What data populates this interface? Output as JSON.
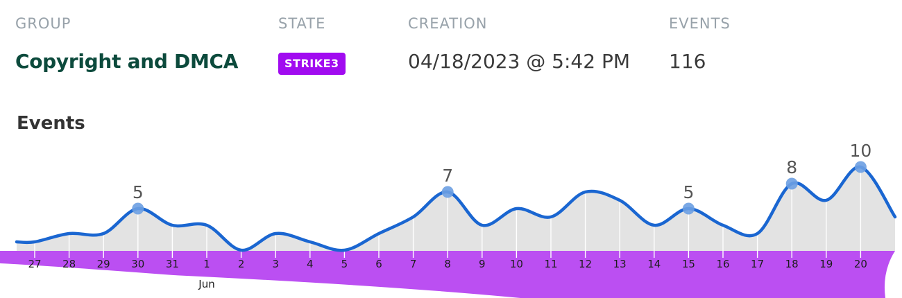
{
  "header": {
    "group_label": "GROUP",
    "state_label": "STATE",
    "creation_label": "CREATION",
    "events_label": "EVENTS",
    "group_value": "Copyright and DMCA",
    "state_value": "STRIKE3",
    "creation_value": "04/18/2023 @ 5:42 PM",
    "events_value": "116"
  },
  "section": {
    "title": "Events"
  },
  "colors": {
    "line": "#1a66d1",
    "area": "#e3e3e3",
    "band": "#bb4ff2",
    "marker": "#6c9ee2",
    "badge": "#a10bf0",
    "group_text": "#0c4a3c"
  },
  "chart_data": {
    "type": "area",
    "categories": [
      "27",
      "28",
      "29",
      "30",
      "31",
      "1",
      "2",
      "3",
      "4",
      "5",
      "6",
      "7",
      "8",
      "9",
      "10",
      "11",
      "12",
      "13",
      "14",
      "15",
      "16",
      "17",
      "18",
      "19",
      "20"
    ],
    "month_label": "Jun",
    "values": [
      1,
      2,
      2,
      5,
      3,
      3,
      0,
      2,
      1,
      0,
      2,
      4,
      7,
      3,
      5,
      4,
      7,
      6,
      3,
      5,
      3,
      2,
      8,
      6,
      10
    ],
    "highlighted_points": [
      {
        "category": "30",
        "value": 5
      },
      {
        "category": "8",
        "value": 7
      },
      {
        "category": "15",
        "value": 5
      },
      {
        "category": "18",
        "value": 8
      },
      {
        "category": "20",
        "value": 10
      }
    ],
    "trailing_value": 4,
    "ylim": [
      0,
      10
    ],
    "grid": "vertical",
    "title": "",
    "xlabel": "",
    "ylabel": ""
  }
}
